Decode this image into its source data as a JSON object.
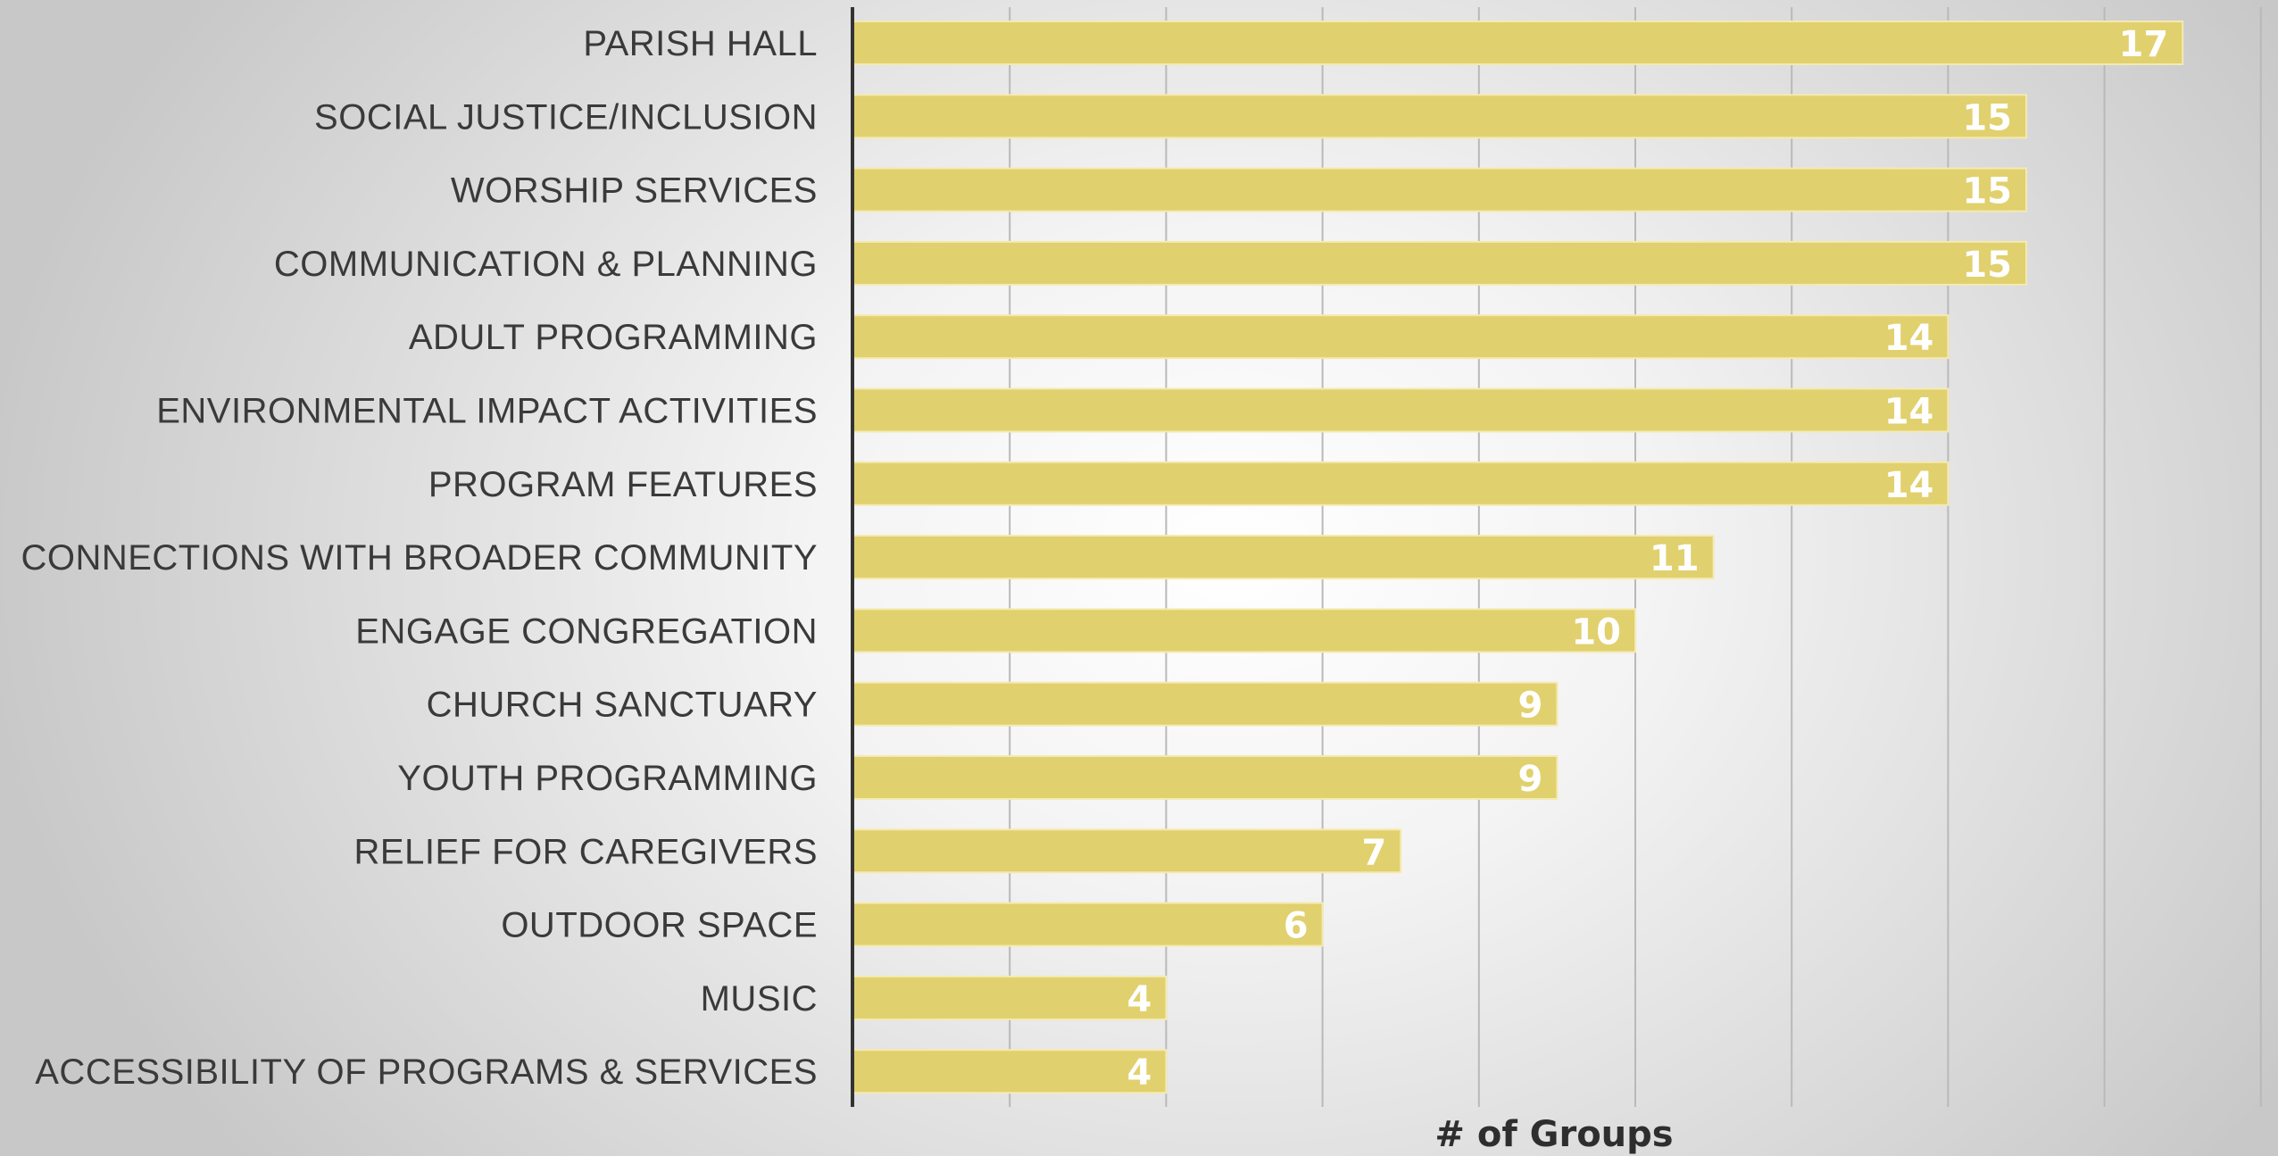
{
  "chart_data": {
    "type": "bar",
    "orientation": "horizontal",
    "categories": [
      "PARISH HALL",
      "SOCIAL JUSTICE/INCLUSION",
      "WORSHIP SERVICES",
      "COMMUNICATION & PLANNING",
      "ADULT PROGRAMMING",
      "ENVIRONMENTAL IMPACT ACTIVITIES",
      "PROGRAM FEATURES",
      "CONNECTIONS WITH BROADER COMMUNITY",
      "ENGAGE CONGREGATION",
      "CHURCH SANCTUARY",
      "YOUTH PROGRAMMING",
      "RELIEF FOR CAREGIVERS",
      "OUTDOOR SPACE",
      "MUSIC",
      "ACCESSIBILITY OF PROGRAMS & SERVICES"
    ],
    "values": [
      17,
      15,
      15,
      15,
      14,
      14,
      14,
      11,
      10,
      9,
      9,
      7,
      6,
      4,
      4
    ],
    "xlabel": "# of Groups",
    "xlim": [
      0,
      18
    ],
    "grid_step": 2,
    "grid": true,
    "data_labels": true,
    "legend": "none",
    "colors": {
      "bar": "#e1d06e",
      "bar_edge": "#f4eab0",
      "label_text": "#3a3a3a",
      "value_text": "#ffffff",
      "axis": "#333333",
      "grid": "#b9b9b9"
    }
  }
}
